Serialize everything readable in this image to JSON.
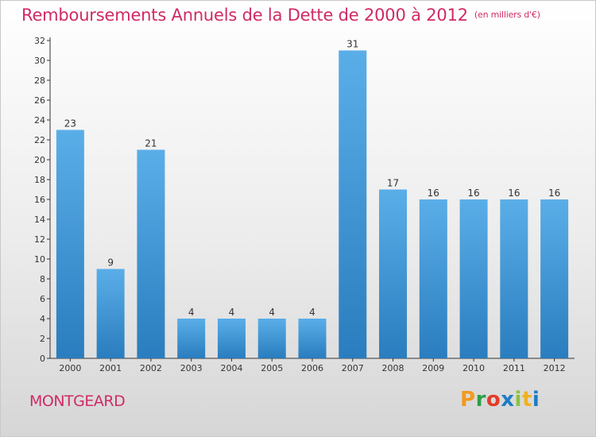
{
  "title": "Remboursements Annuels de la Dette de 2000 à 2012",
  "subtitle": "(en milliers d'€)",
  "commune": "MONTGEARD",
  "brand": {
    "letters": [
      "P",
      "r",
      "o",
      "x",
      "i",
      "t",
      "i"
    ],
    "colors": [
      "#f29a1f",
      "#2e9e48",
      "#e23d28",
      "#1f7cc3",
      "#8bc33f",
      "#f2b11f",
      "#1f7cc3"
    ]
  },
  "colors": {
    "accent": "#d02a66",
    "bar_top": "#5aaee8",
    "bar_bottom": "#2a7dbe"
  },
  "chart_data": {
    "type": "bar",
    "categories": [
      "2000",
      "2001",
      "2002",
      "2003",
      "2004",
      "2005",
      "2006",
      "2007",
      "2008",
      "2009",
      "2010",
      "2011",
      "2012"
    ],
    "values": [
      23,
      9,
      21,
      4,
      4,
      4,
      4,
      31,
      17,
      16,
      16,
      16,
      16
    ],
    "data_labels": [
      "23",
      "9",
      "21",
      "4",
      "4",
      "4",
      "4",
      "31",
      "17",
      "16",
      "16",
      "16",
      "16"
    ],
    "yticks": [
      "0",
      "2",
      "4",
      "6",
      "8",
      "10",
      "12",
      "14",
      "16",
      "18",
      "20",
      "22",
      "24",
      "26",
      "28",
      "30",
      "32"
    ],
    "ylim": [
      0,
      32
    ],
    "grid": false,
    "legend": "none"
  }
}
